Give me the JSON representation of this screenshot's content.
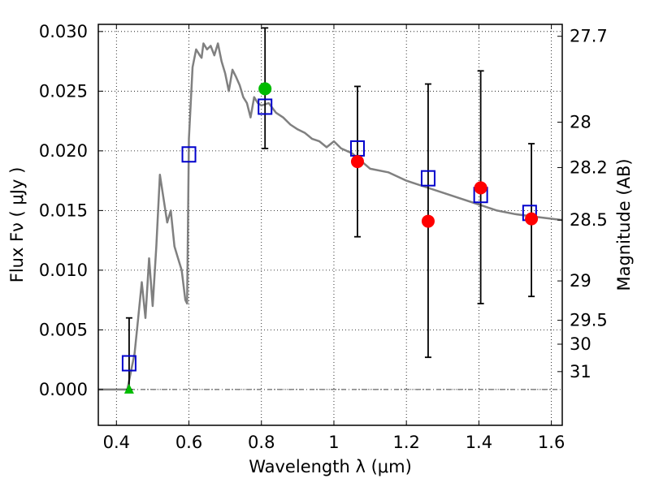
{
  "chart_data": {
    "type": "scatter",
    "title": "",
    "xlabel": "Wavelength  λ (μm)",
    "ylabel": "Flux  Fν  ( μJy )",
    "ylabel_right": "Magnitude (AB)",
    "xlim": [
      0.35,
      1.63
    ],
    "ylim": [
      -0.003,
      0.0306
    ],
    "grid": true,
    "x_ticks": [
      0.4,
      0.6,
      0.8,
      1.0,
      1.2,
      1.4,
      1.6
    ],
    "x_tick_labels": [
      "0.4",
      "0.6",
      "0.8",
      "1",
      "1.2",
      "1.4",
      "1.6"
    ],
    "y_ticks": [
      0.0,
      0.005,
      0.01,
      0.015,
      0.02,
      0.025,
      0.03
    ],
    "y_tick_labels": [
      "0.000",
      "0.005",
      "0.010",
      "0.015",
      "0.020",
      "0.025",
      "0.030"
    ],
    "right_ticks": [
      {
        "label": "27.7",
        "flux": 0.0296
      },
      {
        "label": "28",
        "flux": 0.0224
      },
      {
        "label": "28.2",
        "flux": 0.0186
      },
      {
        "label": "28.5",
        "flux": 0.0142
      },
      {
        "label": "29",
        "flux": 0.0091
      },
      {
        "label": "29.5",
        "flux": 0.0058
      },
      {
        "label": "30",
        "flux": 0.0038
      },
      {
        "label": "31",
        "flux": 0.0015
      }
    ],
    "model_spectrum": {
      "color": "#808080",
      "x": [
        0.35,
        0.43,
        0.45,
        0.46,
        0.47,
        0.48,
        0.49,
        0.5,
        0.51,
        0.52,
        0.53,
        0.54,
        0.55,
        0.56,
        0.57,
        0.58,
        0.59,
        0.595,
        0.6,
        0.61,
        0.62,
        0.63,
        0.635,
        0.64,
        0.65,
        0.66,
        0.67,
        0.68,
        0.69,
        0.7,
        0.71,
        0.72,
        0.73,
        0.74,
        0.75,
        0.76,
        0.77,
        0.78,
        0.79,
        0.8,
        0.82,
        0.84,
        0.86,
        0.88,
        0.9,
        0.92,
        0.94,
        0.96,
        0.98,
        1.0,
        1.02,
        1.05,
        1.1,
        1.15,
        1.2,
        1.25,
        1.3,
        1.35,
        1.4,
        1.45,
        1.5,
        1.55,
        1.63
      ],
      "y": [
        0.0,
        0.0,
        0.003,
        0.006,
        0.009,
        0.006,
        0.011,
        0.007,
        0.012,
        0.018,
        0.016,
        0.014,
        0.015,
        0.012,
        0.011,
        0.01,
        0.0075,
        0.0072,
        0.021,
        0.027,
        0.0285,
        0.028,
        0.0278,
        0.029,
        0.0285,
        0.0288,
        0.028,
        0.029,
        0.0275,
        0.0265,
        0.025,
        0.0268,
        0.0262,
        0.0255,
        0.0245,
        0.024,
        0.0228,
        0.0245,
        0.024,
        0.0238,
        0.024,
        0.0232,
        0.0228,
        0.0222,
        0.0218,
        0.0215,
        0.021,
        0.0208,
        0.0203,
        0.0208,
        0.0202,
        0.0198,
        0.0185,
        0.0182,
        0.0175,
        0.017,
        0.0165,
        0.016,
        0.0155,
        0.015,
        0.0147,
        0.0145,
        0.0142
      ]
    },
    "series": [
      {
        "name": "",
        "marker": "square-open",
        "color": "#0000cc",
        "x": [
          0.435,
          0.6,
          0.81,
          1.065,
          1.26,
          1.405,
          1.54
        ],
        "y": [
          0.0022,
          0.0197,
          0.0237,
          0.0202,
          0.0177,
          0.0163,
          0.0148
        ]
      },
      {
        "name": "",
        "marker": "circle",
        "color": "#ff0000",
        "x": [
          1.065,
          1.26,
          1.405,
          1.545
        ],
        "y": [
          0.0191,
          0.0141,
          0.0169,
          0.0143
        ]
      },
      {
        "name": "",
        "marker": "circle",
        "color": "#00bb00",
        "x": [
          0.81
        ],
        "y": [
          0.0252
        ]
      },
      {
        "name": "",
        "marker": "triangle",
        "color": "#00bb00",
        "x": [
          0.435
        ],
        "y": [
          0.0
        ]
      }
    ],
    "error_bars": [
      {
        "x": 0.435,
        "lo": 0.0,
        "hi": 0.006
      },
      {
        "x": 0.81,
        "lo": 0.0202,
        "hi": 0.0303
      },
      {
        "x": 1.065,
        "lo": 0.0128,
        "hi": 0.0254
      },
      {
        "x": 1.26,
        "lo": 0.0027,
        "hi": 0.0256
      },
      {
        "x": 1.405,
        "lo": 0.0072,
        "hi": 0.0267
      },
      {
        "x": 1.545,
        "lo": 0.0078,
        "hi": 0.0206
      }
    ]
  }
}
